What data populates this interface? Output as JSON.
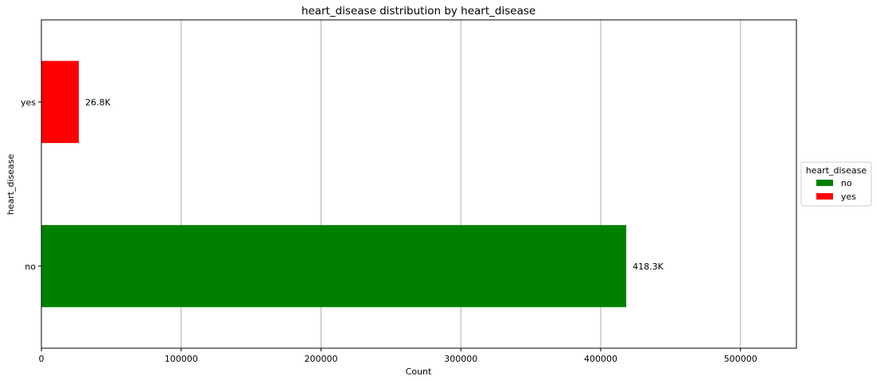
{
  "chart_data": {
    "type": "bar",
    "orientation": "horizontal",
    "title": "heart_disease distribution by heart_disease",
    "xlabel": "Count",
    "ylabel": "heart_disease",
    "categories": [
      "no",
      "yes"
    ],
    "values": [
      418300,
      26800
    ],
    "data_labels": [
      "418.3K",
      "26.8K"
    ],
    "colors": [
      "#008000",
      "#ff0000"
    ],
    "xlim": [
      0,
      540000
    ],
    "xticks": [
      0,
      100000,
      200000,
      300000,
      400000,
      500000
    ],
    "xtick_labels": [
      "0",
      "100000",
      "200000",
      "300000",
      "400000",
      "500000"
    ],
    "grid": "vertical",
    "legend": {
      "title": "heart_disease",
      "placement": "right, outside plot",
      "entries": [
        {
          "label": "no",
          "color": "#008000"
        },
        {
          "label": "yes",
          "color": "#ff0000"
        }
      ]
    }
  }
}
